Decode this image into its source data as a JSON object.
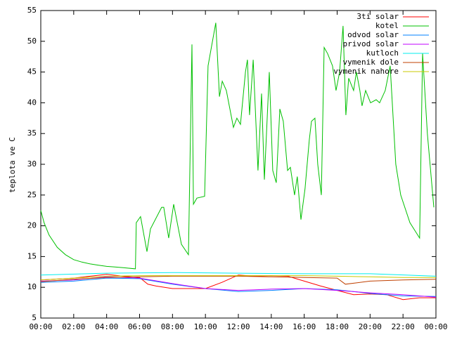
{
  "chart_data": {
    "type": "line",
    "y_label": "teplota ve C",
    "xlim": [
      0,
      24
    ],
    "ylim": [
      5,
      55
    ],
    "xticks": [
      {
        "value": 0,
        "label": "00:00"
      },
      {
        "value": 2,
        "label": "02:00"
      },
      {
        "value": 4,
        "label": "04:00"
      },
      {
        "value": 6,
        "label": "06:00"
      },
      {
        "value": 8,
        "label": "08:00"
      },
      {
        "value": 10,
        "label": "10:00"
      },
      {
        "value": 12,
        "label": "12:00"
      },
      {
        "value": 14,
        "label": "14:00"
      },
      {
        "value": 16,
        "label": "16:00"
      },
      {
        "value": 18,
        "label": "18:00"
      },
      {
        "value": 20,
        "label": "20:00"
      },
      {
        "value": 22,
        "label": "22:00"
      },
      {
        "value": 24,
        "label": "00:00"
      }
    ],
    "yticks": [
      5,
      10,
      15,
      20,
      25,
      30,
      35,
      40,
      45,
      50,
      55
    ],
    "legend": "top-right",
    "series": [
      {
        "name": "3ti solar",
        "color": "#ff0000",
        "x": [
          0,
          2,
          3,
          4,
          5,
          6,
          6.5,
          7,
          8,
          9,
          10,
          11,
          12,
          13,
          14,
          15,
          16,
          17,
          18,
          19,
          20,
          21,
          22,
          23,
          24
        ],
        "values": [
          11.2,
          11.5,
          11.8,
          12.1,
          11.8,
          11.6,
          10.5,
          10.2,
          9.8,
          9.8,
          9.8,
          10.8,
          12.0,
          11.8,
          11.9,
          11.8,
          11.0,
          10.2,
          9.5,
          8.8,
          8.9,
          8.8,
          8.0,
          8.3,
          8.3
        ]
      },
      {
        "name": "kotel",
        "color": "#00c000",
        "x": [
          0,
          0.2,
          0.5,
          1,
          1.5,
          2,
          2.5,
          3,
          3.5,
          4,
          4.5,
          5,
          5.75,
          5.8,
          6.06,
          6.45,
          6.66,
          7.34,
          7.47,
          7.77,
          8.07,
          8.54,
          8.97,
          9.18,
          9.27,
          9.48,
          9.95,
          10.16,
          10.63,
          10.85,
          11.02,
          11.27,
          11.7,
          11.91,
          12.13,
          12.43,
          12.55,
          12.68,
          12.9,
          13.19,
          13.41,
          13.58,
          13.88,
          14.09,
          14.3,
          14.52,
          14.73,
          14.99,
          15.16,
          15.41,
          15.58,
          15.8,
          16.05,
          16.31,
          16.44,
          16.65,
          16.82,
          17.04,
          17.21,
          17.42,
          17.72,
          17.93,
          18.15,
          18.36,
          18.53,
          18.7,
          19.0,
          19.17,
          19.38,
          19.51,
          19.73,
          20.03,
          20.37,
          20.58,
          20.92,
          21.22,
          21.56,
          21.86,
          22.42,
          23.01,
          23.19,
          23.48,
          23.87
        ],
        "values": [
          22.5,
          20.5,
          18.5,
          16.5,
          15.3,
          14.5,
          14.1,
          13.8,
          13.6,
          13.4,
          13.3,
          13.2,
          13.0,
          20.5,
          21.5,
          15.8,
          19.5,
          23,
          23,
          18,
          23.5,
          17,
          15.3,
          49.5,
          23.5,
          24.5,
          24.8,
          46,
          53,
          41,
          43.5,
          42,
          36,
          37.5,
          36.5,
          45,
          47,
          38,
          47,
          29,
          41.5,
          27.5,
          45,
          29,
          27,
          39,
          37,
          29,
          29.5,
          25,
          28,
          21,
          26,
          34,
          37,
          37.5,
          30,
          25,
          49,
          48,
          46,
          42,
          45,
          52.5,
          38,
          44,
          42,
          45,
          42,
          39.5,
          42,
          40,
          40.5,
          40,
          42,
          46,
          30,
          25,
          20.5,
          18,
          48,
          35,
          23
        ]
      },
      {
        "name": "odvod solar",
        "color": "#0080ff",
        "x": [
          0,
          2,
          4,
          6,
          8,
          10,
          12,
          14,
          16,
          18,
          20,
          22,
          24
        ],
        "values": [
          10.8,
          11.0,
          11.5,
          11.4,
          10.5,
          9.8,
          9.3,
          9.5,
          9.8,
          9.6,
          9.0,
          8.6,
          8.5
        ]
      },
      {
        "name": "privod solar",
        "color": "#c000ff",
        "x": [
          0,
          2,
          4,
          6,
          8,
          10,
          12,
          14,
          16,
          18,
          20,
          22,
          24
        ],
        "values": [
          11.0,
          11.2,
          11.7,
          11.5,
          10.6,
          9.8,
          9.5,
          9.7,
          9.8,
          9.5,
          9.1,
          8.8,
          8.4
        ]
      },
      {
        "name": "kutloch",
        "color": "#00eeee",
        "x": [
          0,
          4,
          8,
          12,
          16,
          20,
          24
        ],
        "values": [
          12.0,
          12.3,
          12.4,
          12.3,
          12.2,
          12.2,
          11.8
        ]
      },
      {
        "name": "vymenik dole",
        "color": "#c04000",
        "x": [
          0,
          2,
          4,
          6,
          8,
          10,
          12,
          14,
          16,
          18,
          18.5,
          20,
          22,
          24
        ],
        "values": [
          10.9,
          11.3,
          11.6,
          11.7,
          11.8,
          11.8,
          11.8,
          11.7,
          11.6,
          11.5,
          10.5,
          11.0,
          11.2,
          11.3
        ]
      },
      {
        "name": "vymenik nahore",
        "color": "#c8c800",
        "x": [
          0,
          2,
          4,
          6,
          8,
          10,
          12,
          14,
          16,
          18,
          20,
          22,
          24
        ],
        "values": [
          11.2,
          11.5,
          11.8,
          11.9,
          11.9,
          11.9,
          11.9,
          11.9,
          11.9,
          11.8,
          11.7,
          11.6,
          11.6
        ]
      }
    ]
  }
}
